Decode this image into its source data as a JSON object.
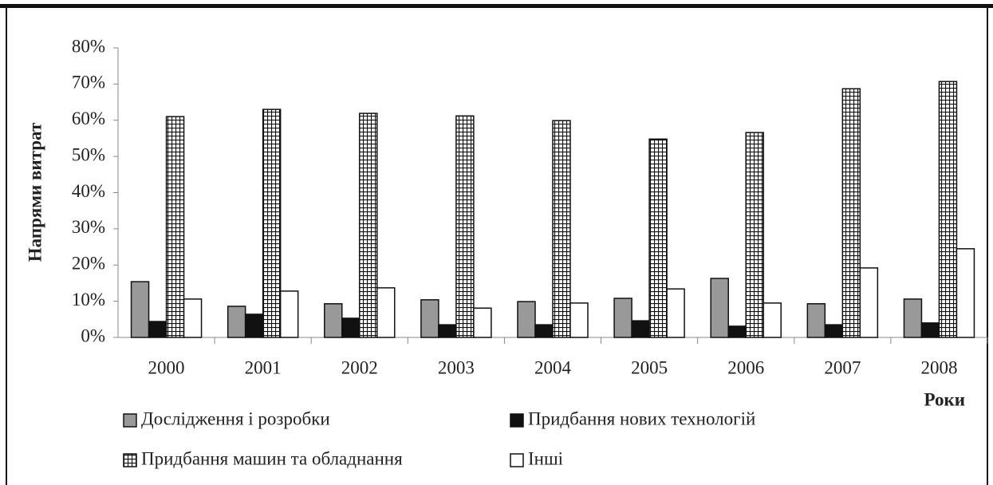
{
  "chart_data": {
    "type": "bar",
    "y_label": "Напрями витрат",
    "x_label": "Роки",
    "categories": [
      "2000",
      "2001",
      "2002",
      "2003",
      "2004",
      "2005",
      "2006",
      "2007",
      "2008"
    ],
    "series": [
      {
        "name": "Дослідження і розробки",
        "color": "#999999",
        "values": [
          15.4,
          8.6,
          9.3,
          10.4,
          9.9,
          10.8,
          16.3,
          9.3,
          10.6
        ]
      },
      {
        "name": "Придбання нових технологій",
        "color": "#111111",
        "values": [
          4.4,
          6.4,
          5.3,
          3.5,
          3.5,
          4.6,
          3.1,
          3.5,
          4.0
        ]
      },
      {
        "name": "Придбання машин та обладнання",
        "color": "#ffffff",
        "pattern": "grid",
        "values": [
          61.0,
          63.0,
          61.9,
          61.2,
          59.9,
          54.8,
          56.6,
          68.7,
          70.7
        ]
      },
      {
        "name": "Інші",
        "color": "#ffffff",
        "values": [
          10.6,
          12.8,
          13.7,
          8.1,
          9.5,
          13.4,
          9.5,
          19.2,
          24.5
        ]
      }
    ],
    "ylim": [
      0,
      80
    ],
    "yticks": [
      {
        "value": 0,
        "label": "0%"
      },
      {
        "value": 10,
        "label": "10%"
      },
      {
        "value": 20,
        "label": "20%"
      },
      {
        "value": 30,
        "label": "30%"
      },
      {
        "value": 40,
        "label": "40%"
      },
      {
        "value": 50,
        "label": "50%"
      },
      {
        "value": 60,
        "label": "60%"
      },
      {
        "value": 70,
        "label": "70%"
      },
      {
        "value": 80,
        "label": "80%"
      }
    ],
    "grid": false,
    "legend": "bottom"
  }
}
